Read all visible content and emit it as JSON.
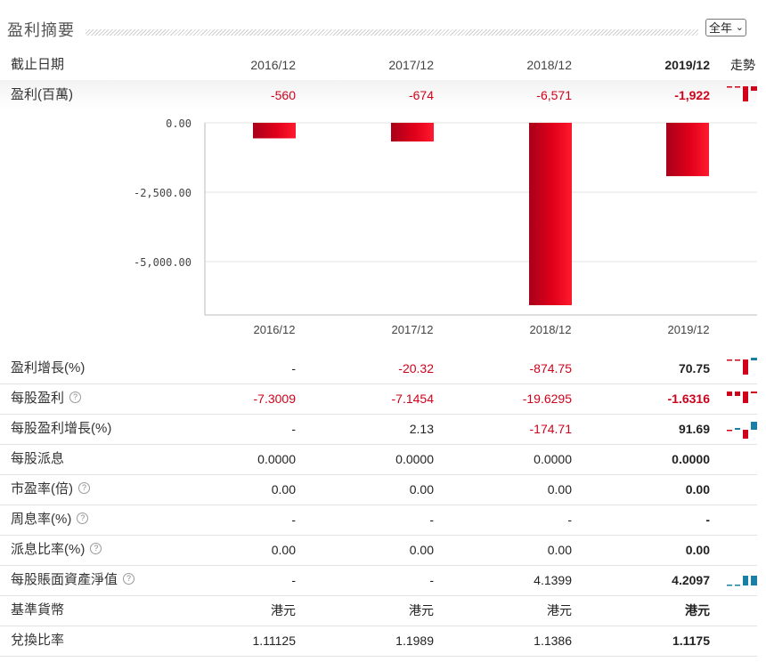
{
  "header": {
    "title": "盈利摘要",
    "period_select": "全年"
  },
  "columns": {
    "label": "截止日期",
    "years": [
      "2016/12",
      "2017/12",
      "2018/12",
      "2019/12"
    ],
    "trend": "走勢"
  },
  "profit_row": {
    "label": "盈利(百萬)",
    "values": [
      "-560",
      "-674",
      "-6,571",
      "-1,922"
    ]
  },
  "chart_data": {
    "type": "bar",
    "categories": [
      "2016/12",
      "2017/12",
      "2018/12",
      "2019/12"
    ],
    "values": [
      -560,
      -674,
      -6571,
      -1922
    ],
    "yticks": [
      "0.00",
      "-2,500.00",
      "-5,000.00"
    ],
    "ylim": [
      -6800,
      0
    ],
    "bar_color": "#e0001a"
  },
  "rows": [
    {
      "label": "盈利增長(%)",
      "help": false,
      "values": [
        "-",
        "-20.32",
        "-874.75",
        "70.75"
      ],
      "neg": [
        false,
        true,
        true,
        false
      ]
    },
    {
      "label": "每股盈利",
      "help": true,
      "values": [
        "-7.3009",
        "-7.1454",
        "-19.6295",
        "-1.6316"
      ],
      "neg": [
        true,
        true,
        true,
        true
      ]
    },
    {
      "label": "每股盈利增長(%)",
      "help": false,
      "values": [
        "-",
        "2.13",
        "-174.71",
        "91.69"
      ],
      "neg": [
        false,
        false,
        true,
        false
      ]
    },
    {
      "label": "每股派息",
      "help": false,
      "values": [
        "0.0000",
        "0.0000",
        "0.0000",
        "0.0000"
      ],
      "neg": [
        false,
        false,
        false,
        false
      ]
    },
    {
      "label": "市盈率(倍)",
      "help": true,
      "values": [
        "0.00",
        "0.00",
        "0.00",
        "0.00"
      ],
      "neg": [
        false,
        false,
        false,
        false
      ]
    },
    {
      "label": "周息率(%)",
      "help": true,
      "values": [
        "-",
        "-",
        "-",
        "-"
      ],
      "neg": [
        false,
        false,
        false,
        false
      ]
    },
    {
      "label": "派息比率(%)",
      "help": true,
      "values": [
        "0.00",
        "0.00",
        "0.00",
        "0.00"
      ],
      "neg": [
        false,
        false,
        false,
        false
      ]
    },
    {
      "label": "每股賬面資產淨值",
      "help": true,
      "values": [
        "-",
        "-",
        "4.1399",
        "4.2097"
      ],
      "neg": [
        false,
        false,
        false,
        false
      ]
    },
    {
      "label": "基準貨幣",
      "help": false,
      "values": [
        "港元",
        "港元",
        "港元",
        "港元"
      ],
      "neg": [
        false,
        false,
        false,
        false
      ]
    },
    {
      "label": "兌換比率",
      "help": false,
      "values": [
        "1.11125",
        "1.1989",
        "1.1386",
        "1.1175"
      ],
      "neg": [
        false,
        false,
        false,
        false
      ]
    }
  ],
  "colors": {
    "negative": "#d0021b",
    "positive_spark": "#1a7fa6",
    "bar": "#e0001a"
  }
}
